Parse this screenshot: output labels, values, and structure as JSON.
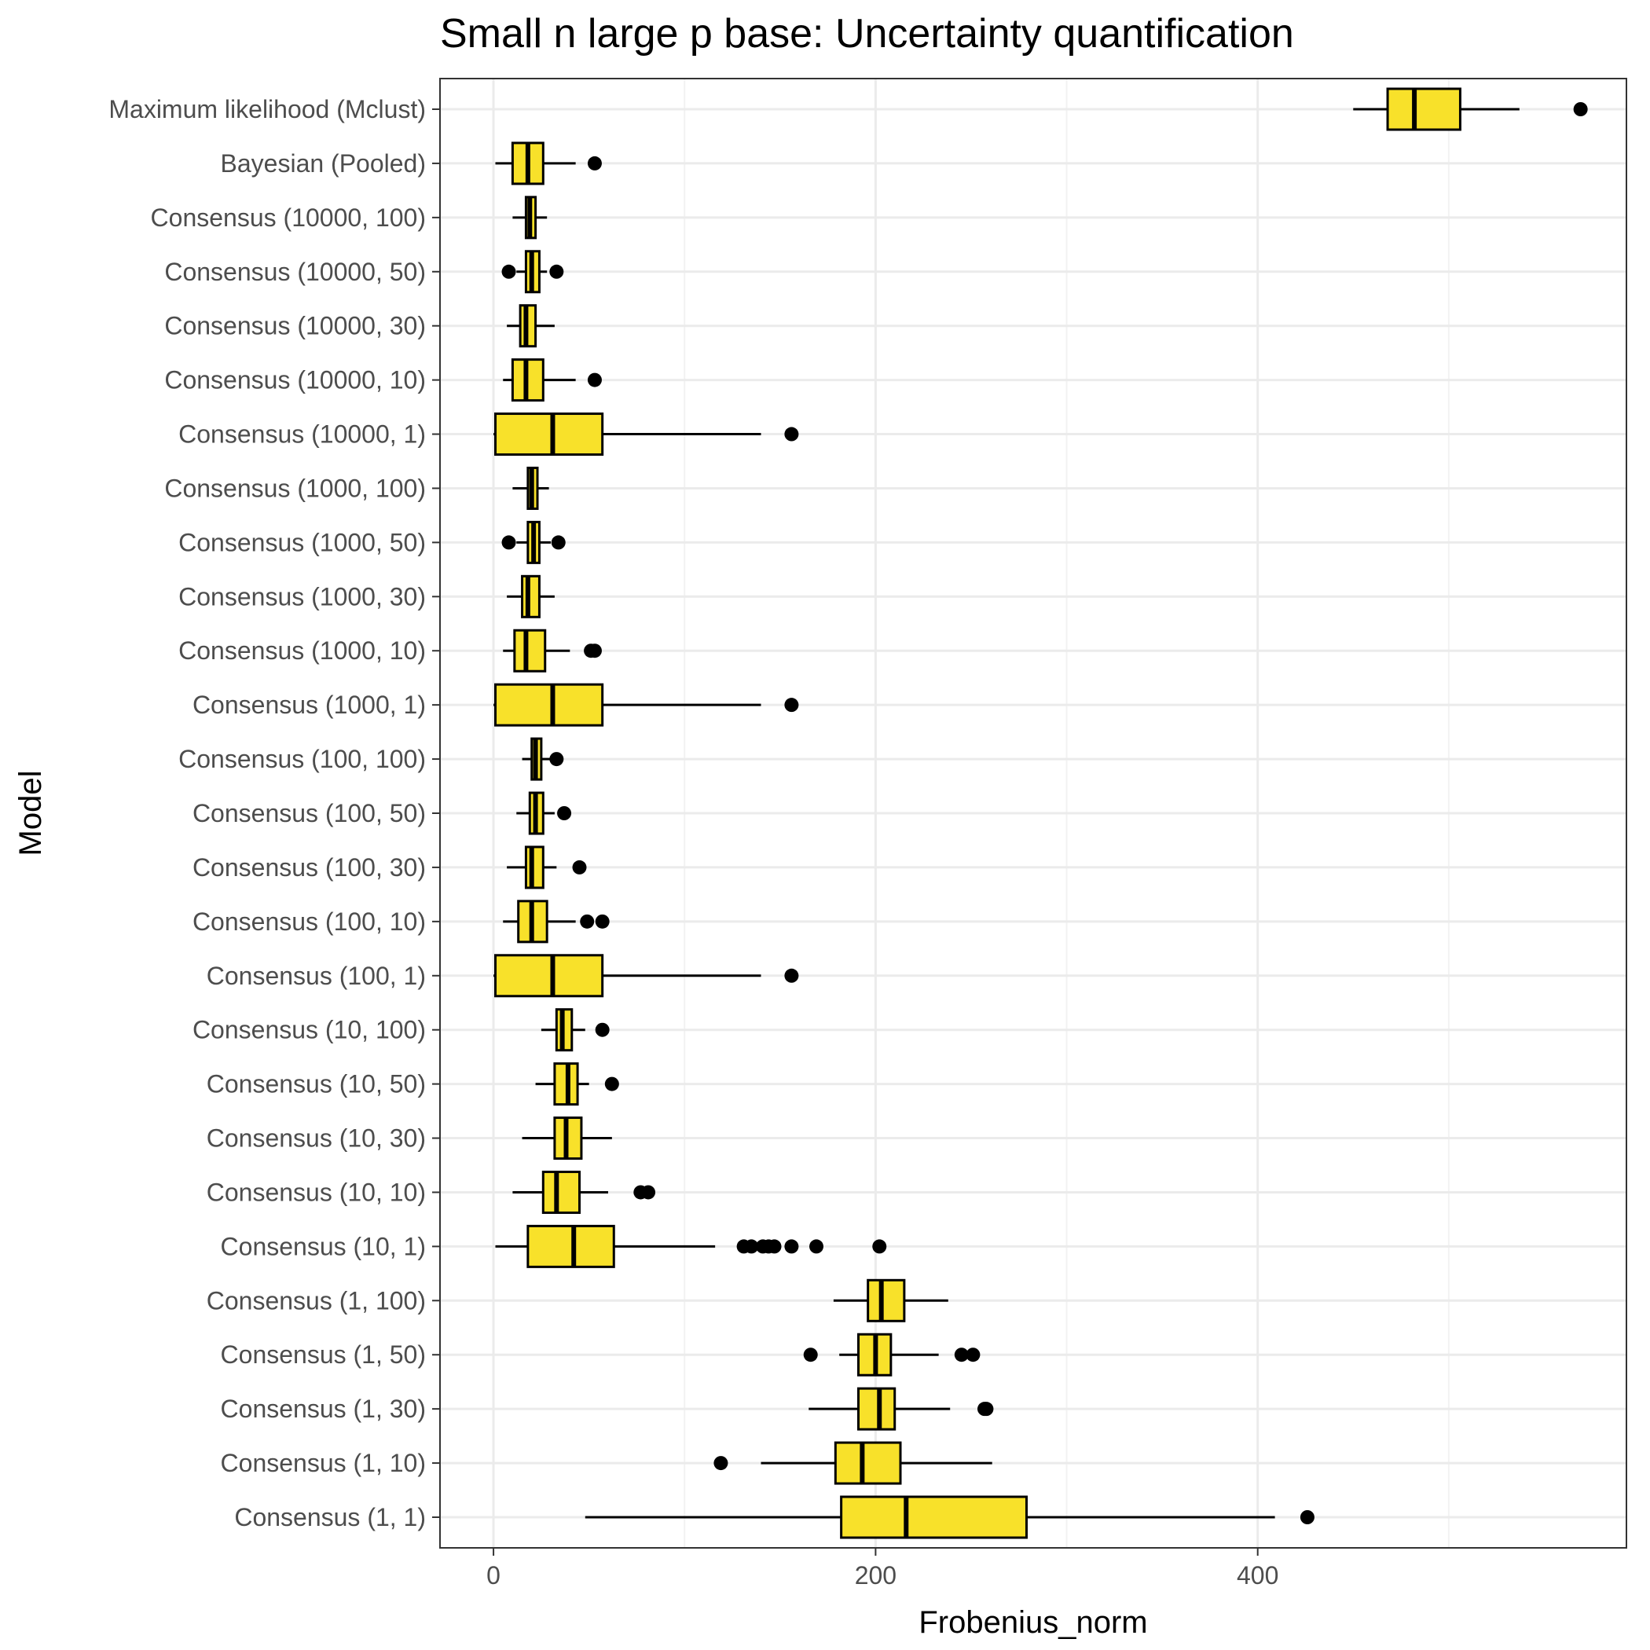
{
  "chart_data": {
    "type": "boxplot",
    "orientation": "horizontal",
    "title": "Small n large p base: Uncertainty quantification",
    "xlabel": "Frobenius_norm",
    "ylabel": "Model",
    "xlim": [
      -28,
      593
    ],
    "xticks": [
      0,
      200,
      400
    ],
    "grid": true,
    "fill_color": "#F8E12A",
    "outline_color": "#000000",
    "categories": [
      "Maximum likelihood (Mclust)",
      "Bayesian (Pooled)",
      "Consensus (10000, 100)",
      "Consensus (10000, 50)",
      "Consensus (10000, 30)",
      "Consensus (10000, 10)",
      "Consensus (10000, 1)",
      "Consensus (1000, 100)",
      "Consensus (1000, 50)",
      "Consensus (1000, 30)",
      "Consensus (1000, 10)",
      "Consensus (1000, 1)",
      "Consensus (100, 100)",
      "Consensus (100, 50)",
      "Consensus (100, 30)",
      "Consensus (100, 10)",
      "Consensus (100, 1)",
      "Consensus (10, 100)",
      "Consensus (10, 50)",
      "Consensus (10, 30)",
      "Consensus (10, 10)",
      "Consensus (10, 1)",
      "Consensus (1, 100)",
      "Consensus (1, 50)",
      "Consensus (1, 30)",
      "Consensus (1, 10)",
      "Consensus (1, 1)"
    ],
    "boxes": [
      {
        "min": 450,
        "q1": 468,
        "median": 482,
        "q3": 506,
        "max": 537,
        "outliers": [
          569
        ]
      },
      {
        "min": 1,
        "q1": 10,
        "median": 18,
        "q3": 26,
        "max": 43,
        "outliers": [
          53
        ]
      },
      {
        "min": 10,
        "q1": 17,
        "median": 19,
        "q3": 22,
        "max": 28,
        "outliers": []
      },
      {
        "min": 12,
        "q1": 17,
        "median": 20,
        "q3": 24,
        "max": 28,
        "outliers": [
          8,
          33
        ]
      },
      {
        "min": 7,
        "q1": 14,
        "median": 17,
        "q3": 22,
        "max": 32,
        "outliers": []
      },
      {
        "min": 5,
        "q1": 10,
        "median": 17,
        "q3": 26,
        "max": 43,
        "outliers": [
          53
        ]
      },
      {
        "min": 0,
        "q1": 1,
        "median": 31,
        "q3": 57,
        "max": 140,
        "outliers": [
          156
        ]
      },
      {
        "min": 10,
        "q1": 18,
        "median": 20,
        "q3": 23,
        "max": 29,
        "outliers": []
      },
      {
        "min": 12,
        "q1": 18,
        "median": 21,
        "q3": 24,
        "max": 30,
        "outliers": [
          8,
          34
        ]
      },
      {
        "min": 7,
        "q1": 15,
        "median": 18,
        "q3": 24,
        "max": 32,
        "outliers": []
      },
      {
        "min": 5,
        "q1": 11,
        "median": 17,
        "q3": 27,
        "max": 40,
        "outliers": [
          51,
          53
        ]
      },
      {
        "min": 0,
        "q1": 1,
        "median": 31,
        "q3": 57,
        "max": 140,
        "outliers": [
          156
        ]
      },
      {
        "min": 15,
        "q1": 20,
        "median": 22,
        "q3": 25,
        "max": 30,
        "outliers": [
          33
        ]
      },
      {
        "min": 12,
        "q1": 19,
        "median": 22,
        "q3": 26,
        "max": 32,
        "outliers": [
          37
        ]
      },
      {
        "min": 7,
        "q1": 17,
        "median": 20,
        "q3": 26,
        "max": 33,
        "outliers": [
          45
        ]
      },
      {
        "min": 5,
        "q1": 13,
        "median": 20,
        "q3": 28,
        "max": 43,
        "outliers": [
          49,
          57
        ]
      },
      {
        "min": 0,
        "q1": 1,
        "median": 31,
        "q3": 57,
        "max": 140,
        "outliers": [
          156
        ]
      },
      {
        "min": 25,
        "q1": 33,
        "median": 36,
        "q3": 41,
        "max": 48,
        "outliers": [
          57
        ]
      },
      {
        "min": 22,
        "q1": 32,
        "median": 39,
        "q3": 44,
        "max": 50,
        "outliers": [
          62
        ]
      },
      {
        "min": 15,
        "q1": 32,
        "median": 38,
        "q3": 46,
        "max": 62,
        "outliers": []
      },
      {
        "min": 10,
        "q1": 26,
        "median": 33,
        "q3": 45,
        "max": 60,
        "outliers": [
          77,
          81
        ]
      },
      {
        "min": 1,
        "q1": 18,
        "median": 42,
        "q3": 63,
        "max": 116,
        "outliers": [
          131,
          135,
          141,
          144,
          147,
          156,
          169,
          202
        ]
      },
      {
        "min": 178,
        "q1": 196,
        "median": 203,
        "q3": 215,
        "max": 238,
        "outliers": []
      },
      {
        "min": 181,
        "q1": 191,
        "median": 200,
        "q3": 208,
        "max": 233,
        "outliers": [
          166,
          245,
          251
        ]
      },
      {
        "min": 165,
        "q1": 191,
        "median": 202,
        "q3": 210,
        "max": 239,
        "outliers": [
          257,
          258
        ]
      },
      {
        "min": 140,
        "q1": 179,
        "median": 193,
        "q3": 213,
        "max": 261,
        "outliers": [
          119
        ]
      },
      {
        "min": 48,
        "q1": 182,
        "median": 216,
        "q3": 279,
        "max": 409,
        "outliers": [
          426
        ]
      }
    ]
  }
}
